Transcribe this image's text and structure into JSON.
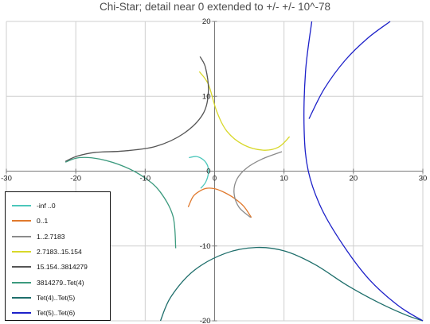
{
  "chart_data": {
    "type": "line",
    "title": "Chi-Star; detail near 0 extended to +/- +/- 10^-78",
    "xlim": [
      -30,
      30
    ],
    "ylim": [
      -20,
      20
    ],
    "x_ticks": [
      "-30",
      "-20",
      "-10",
      "0",
      "10",
      "20",
      "30"
    ],
    "y_ticks": [
      "20",
      "10",
      "0",
      "-10",
      "-20"
    ],
    "grid": true,
    "legend_position": "bottom-left",
    "series": [
      {
        "name": "-inf ..0",
        "color": "#4cc7bb",
        "x": [
          -3.7,
          -2.6,
          -1.6,
          -1.0,
          -0.9,
          -1.3,
          -2.0
        ],
        "y": [
          1.8,
          1.95,
          1.5,
          0.7,
          -0.3,
          -1.5,
          -2.3
        ]
      },
      {
        "name": "0..1",
        "color": "#e0792d",
        "x": [
          -3.8,
          -3.1,
          -2.2,
          -1.2,
          0.0,
          1.3,
          2.8,
          4.2,
          5.3
        ],
        "y": [
          -4.8,
          -3.4,
          -2.7,
          -2.3,
          -2.35,
          -2.8,
          -3.6,
          -4.7,
          -6.2
        ]
      },
      {
        "name": "1..2.7183",
        "color": "#8b8b8b",
        "x": [
          5.2,
          3.5,
          2.8,
          3.2,
          4.6,
          6.8,
          9.7
        ],
        "y": [
          -6.2,
          -4.8,
          -2.9,
          -1.1,
          0.4,
          1.6,
          2.6
        ]
      },
      {
        "name": "2.7183..15.154",
        "color": "#d8d82a",
        "x": [
          -2.2,
          -0.9,
          0.3,
          1.8,
          4.2,
          7.0,
          9.2,
          10.8
        ],
        "y": [
          13.3,
          11.6,
          8.0,
          5.3,
          3.5,
          2.8,
          3.2,
          4.6
        ]
      },
      {
        "name": "15.154..3814279",
        "color": "#555555",
        "x": [
          -2.1,
          -1.3,
          -0.9,
          -1.7,
          -4.5,
          -8.5,
          -13.0,
          -17.2,
          -19.8,
          -21.5
        ],
        "y": [
          15.3,
          13.8,
          10.6,
          7.6,
          5.0,
          3.3,
          2.7,
          2.5,
          2.0,
          1.3
        ]
      },
      {
        "name": "3814279..Tet(4)",
        "color": "#3c9a7e",
        "x": [
          -21.5,
          -19.5,
          -16.5,
          -13.0,
          -10.2,
          -7.9,
          -6.0,
          -5.6
        ],
        "y": [
          1.2,
          1.8,
          1.6,
          0.6,
          -0.8,
          -2.7,
          -6.0,
          -10.3
        ]
      },
      {
        "name": "Tet(4)..Tet(5)",
        "color": "#1e6e6b",
        "x": [
          -7.8,
          -6.3,
          -3.0,
          1.5,
          6.0,
          10.2,
          14.5,
          19.0,
          23.5,
          27.5,
          30.0
        ],
        "y": [
          -20.0,
          -16.8,
          -13.3,
          -11.0,
          -10.2,
          -10.7,
          -12.5,
          -15.2,
          -17.5,
          -19.2,
          -20.0
        ]
      },
      {
        "name": "Tet(5)..Tet(6)",
        "color": "#1d21c9",
        "x": [
          14.0,
          13.1,
          12.9,
          13.5,
          15.4,
          18.6,
          22.3,
          26.5,
          30.0
        ],
        "y": [
          20.0,
          13.3,
          5.5,
          0.0,
          -5.0,
          -10.0,
          -14.5,
          -18.0,
          -20.0
        ]
      },
      {
        "name": "",
        "color": "#1d21c9",
        "x": [
          13.6,
          15.8,
          18.8,
          22.1,
          25.3
        ],
        "y": [
          7.0,
          11.0,
          14.8,
          17.8,
          20.0
        ]
      }
    ]
  }
}
